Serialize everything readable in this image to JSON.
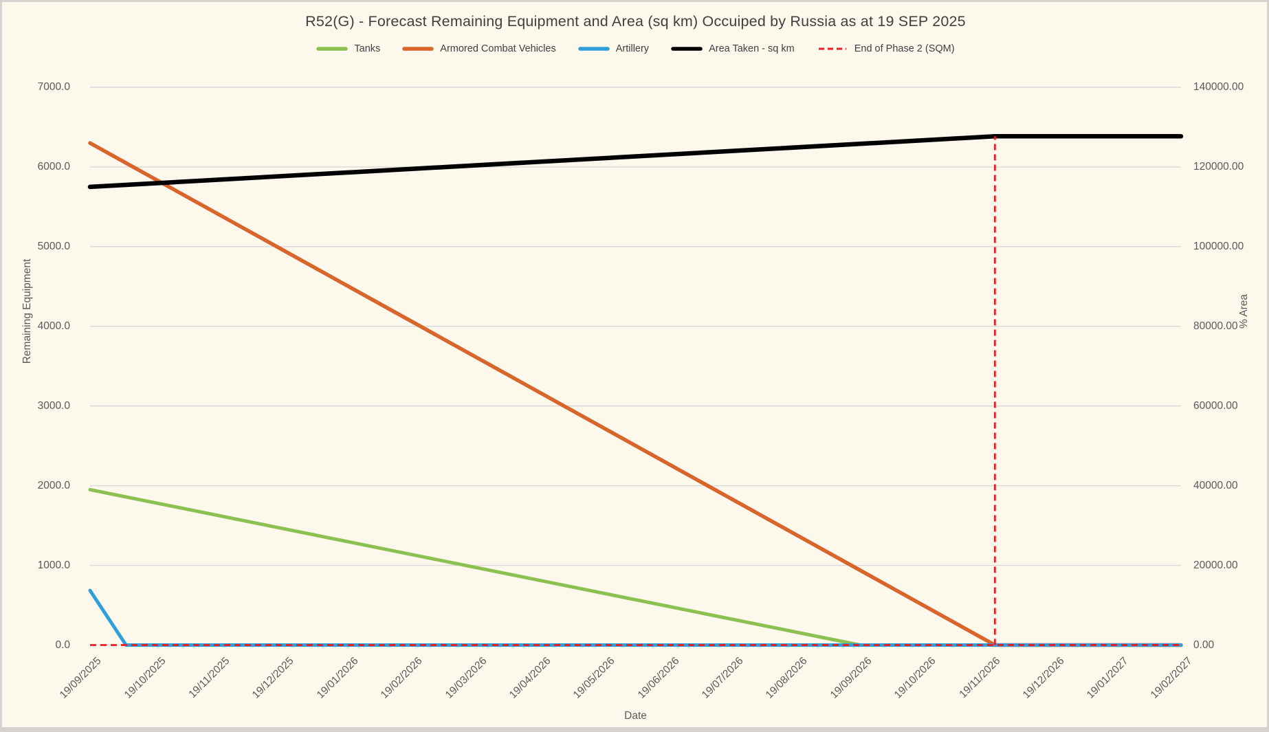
{
  "window": {
    "background": "#FDF8EC",
    "frame_border": "#D6D2CD"
  },
  "chart_data": {
    "type": "line",
    "title": "R52(G) - Forecast Remaining Equipment and Area (sq km) Occuiped by Russia as at 19 SEP 2025",
    "xlabel": "Date",
    "ylabel_left": "Remaining Equipment",
    "ylabel_right": "% Area",
    "grid": "horizontal",
    "legend_position": "top",
    "colors": {
      "gridline": "#D9D9D9",
      "tick_text": "#595959",
      "title_text": "#3F3F3F",
      "tanks": "#8CC152",
      "armored_combat_vehicles": "#D8662C",
      "artillery": "#2E9FDA",
      "area_taken": "#000000",
      "end_of_phase_2": "#EC1B23"
    },
    "x_axis": {
      "months_span": 17,
      "categories": [
        "19/09/2025",
        "19/10/2025",
        "19/11/2025",
        "19/12/2025",
        "19/01/2026",
        "19/02/2026",
        "19/03/2026",
        "19/04/2026",
        "19/05/2026",
        "19/06/2026",
        "19/07/2026",
        "19/08/2026",
        "19/09/2026",
        "19/10/2026",
        "19/11/2026",
        "19/12/2026",
        "19/01/2027",
        "19/02/2027"
      ]
    },
    "left_axis": {
      "min": 0,
      "max": 7000,
      "step": 1000,
      "ticks": [
        0,
        1000,
        2000,
        3000,
        4000,
        5000,
        6000,
        7000
      ],
      "tick_labels": [
        "0.0",
        "1000.0",
        "2000.0",
        "3000.0",
        "4000.0",
        "5000.0",
        "6000.0",
        "7000.0"
      ]
    },
    "right_axis": {
      "min": 0,
      "max": 140000,
      "step": 20000,
      "ticks": [
        0,
        20000,
        40000,
        60000,
        80000,
        100000,
        120000,
        140000
      ],
      "tick_labels": [
        "0.00",
        "20000.00",
        "40000.00",
        "60000.00",
        "80000.00",
        "100000.00",
        "120000.00",
        "140000.00"
      ]
    },
    "series": [
      {
        "name": "Tanks",
        "axis": "left",
        "color": "#8CC152",
        "width": 5,
        "segments": [
          [
            [
              0,
              1950
            ],
            [
              12,
              0
            ],
            [
              17,
              0
            ]
          ]
        ]
      },
      {
        "name": "Armored Combat Vehicles",
        "axis": "left",
        "color": "#D8662C",
        "width": 5.5,
        "segments": [
          [
            [
              0,
              6300
            ],
            [
              14.1,
              0
            ],
            [
              17,
              0
            ]
          ]
        ]
      },
      {
        "name": "Artillery",
        "axis": "left",
        "color": "#2E9FDA",
        "width": 5,
        "segments": [
          [
            [
              0,
              685
            ],
            [
              0.56,
              0
            ],
            [
              17,
              0
            ]
          ]
        ]
      },
      {
        "name": "Area Taken - sq km",
        "axis": "right",
        "color": "#000000",
        "width": 6.5,
        "segments": [
          [
            [
              0,
              115000
            ],
            [
              14.1,
              127700
            ],
            [
              17,
              127700
            ]
          ]
        ]
      },
      {
        "name": "End of Phase 2 (SQM)",
        "axis": "right",
        "color": "#EC1B23",
        "width": 2.8,
        "dash": [
          9,
          6
        ],
        "segments": [
          [
            [
              0,
              0
            ],
            [
              17,
              0
            ]
          ],
          [
            [
              14.1,
              0
            ],
            [
              14.1,
              127700
            ]
          ]
        ]
      }
    ],
    "annotations": {
      "phase2_end_x_months": 14.1,
      "phase2_end_area_sqkm": 127700,
      "tanks_reach_zero_at": "19/09/2026",
      "acv_reach_zero_at_phase2_line": true
    }
  }
}
